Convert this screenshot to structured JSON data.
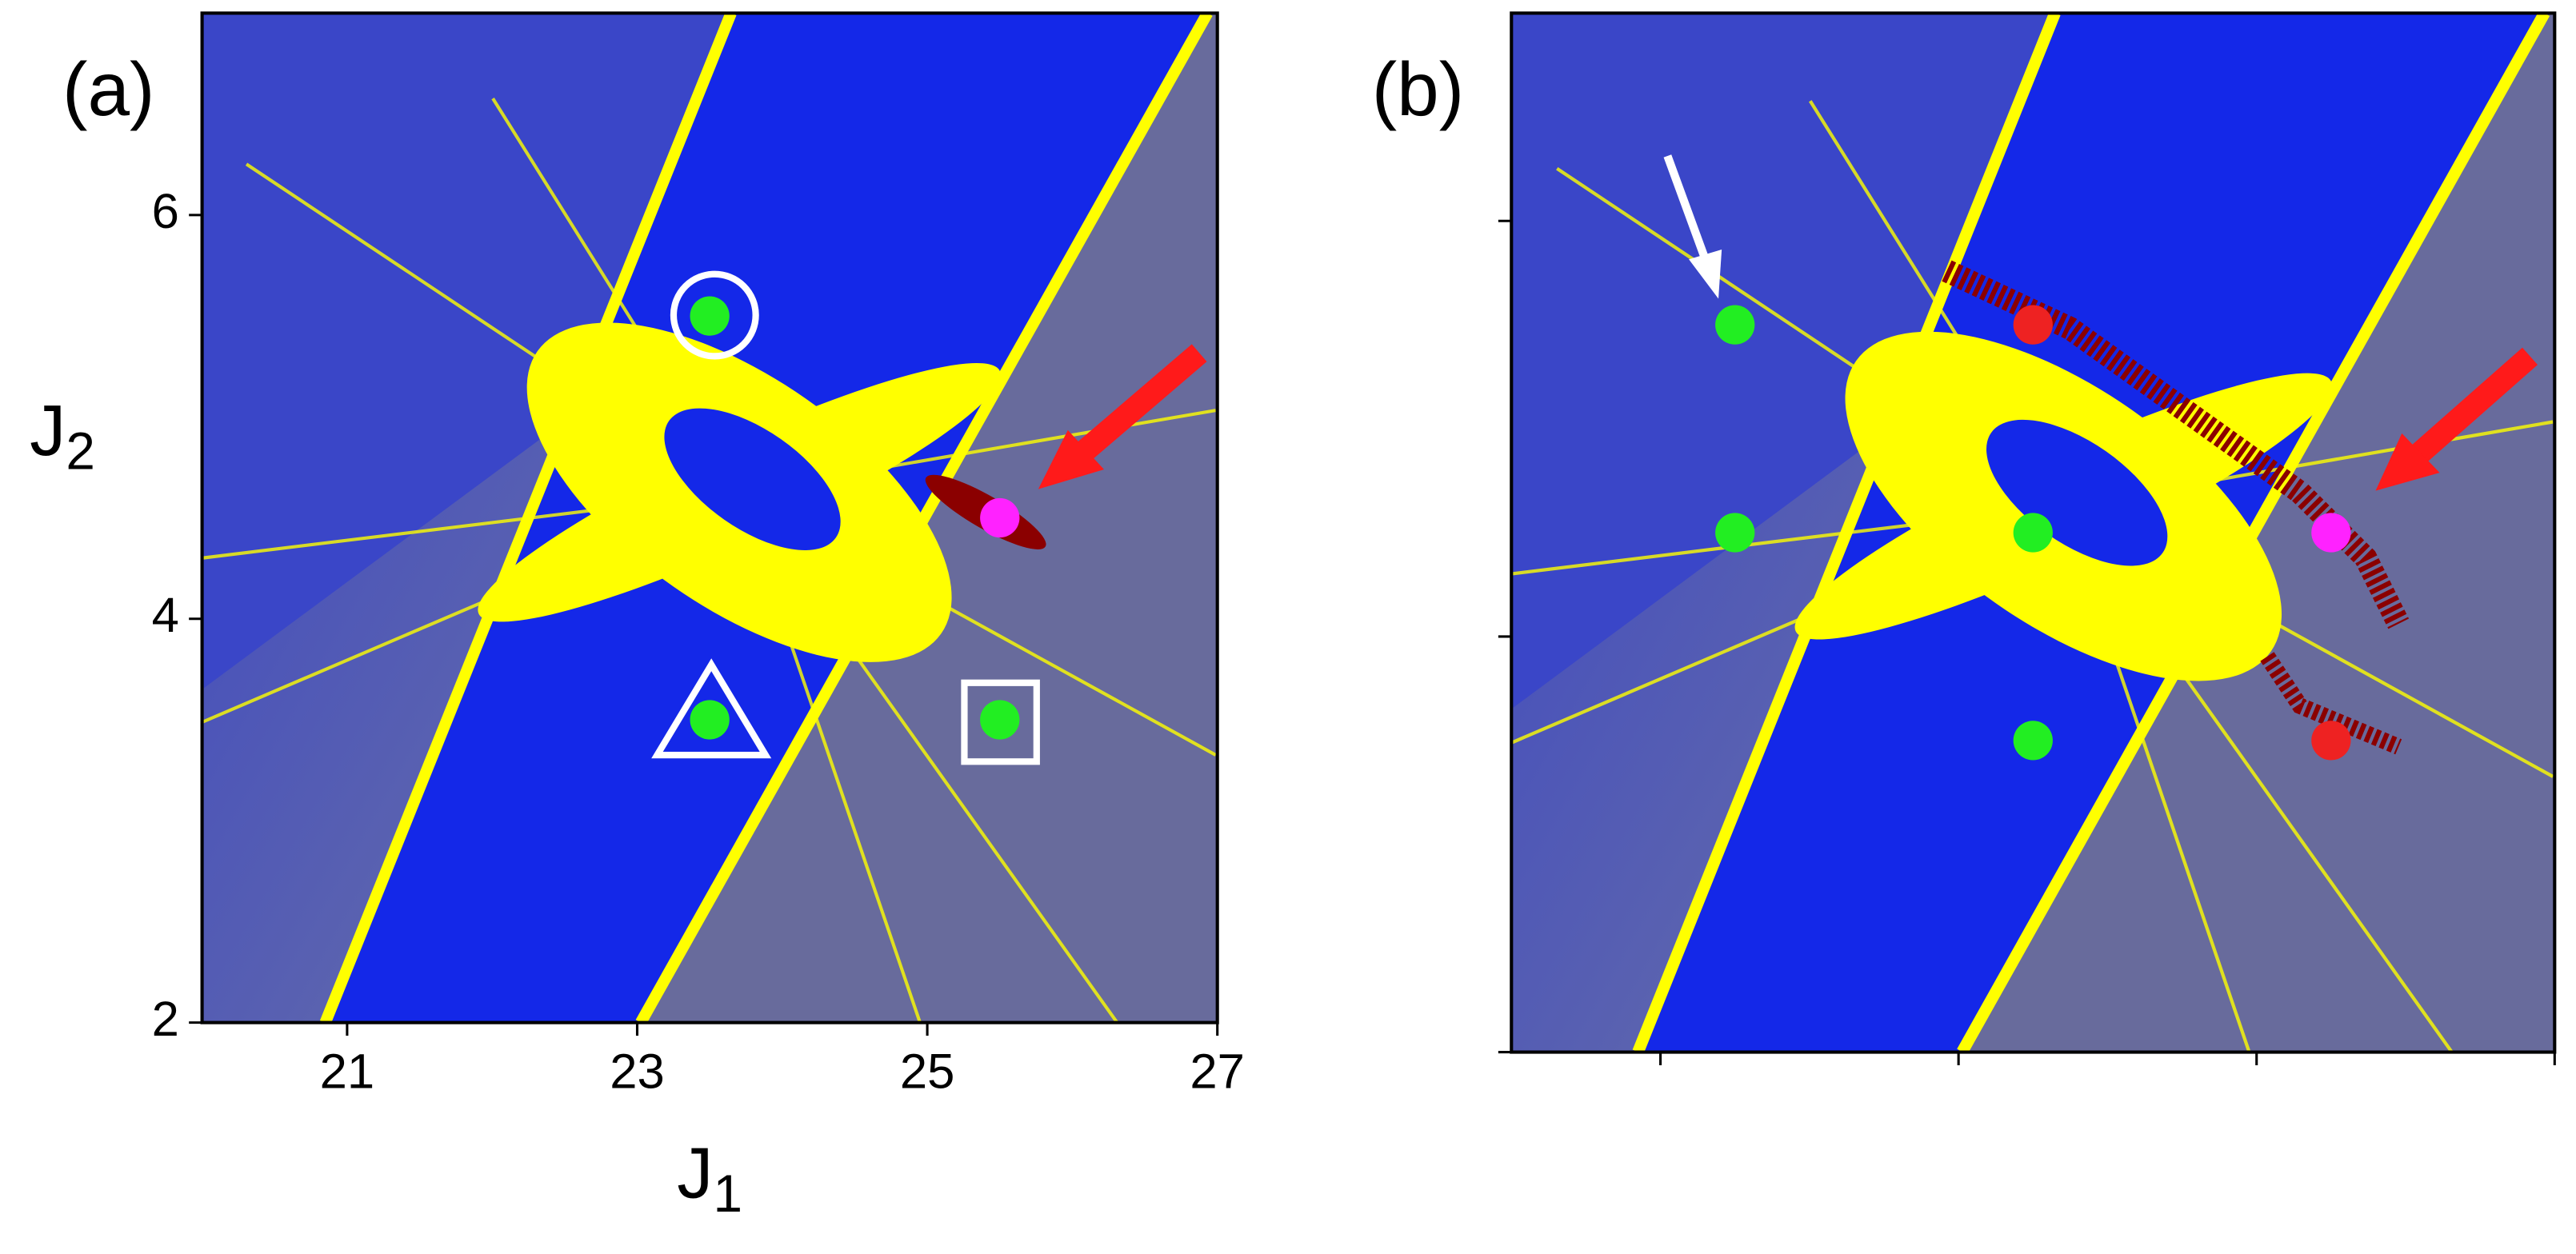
{
  "chart_data": [
    {
      "type": "scatter",
      "label": "(a)",
      "x_label": {
        "base": "J",
        "sub": "1"
      },
      "y_label": {
        "base": "J",
        "sub": "2"
      },
      "xlim": [
        20,
        27
      ],
      "ylim": [
        2,
        7
      ],
      "xticks": [
        21,
        23,
        25,
        27
      ],
      "yticks": [
        2,
        4,
        6
      ],
      "points": [
        {
          "color": "#22ee22",
          "x": [
            23.5,
            23.5,
            25.5
          ],
          "y": [
            5.5,
            3.5,
            3.5
          ]
        },
        {
          "color": "#ff22ff",
          "x": [
            25.5
          ],
          "y": [
            4.5
          ]
        }
      ]
    },
    {
      "type": "scatter",
      "label": "(b)",
      "xlim": [
        20,
        27
      ],
      "ylim": [
        2,
        7
      ],
      "xticks": [
        21,
        23,
        25,
        27
      ],
      "yticks": [
        2,
        4,
        6
      ],
      "tick_labels": false,
      "points": [
        {
          "color": "#22ee22",
          "x": [
            21.5,
            21.5,
            23.5,
            23.5
          ],
          "y": [
            5.5,
            4.5,
            4.5,
            3.5
          ]
        },
        {
          "color": "#ee2222",
          "x": [
            23.5,
            25.5
          ],
          "y": [
            5.5,
            3.5
          ]
        },
        {
          "color": "#ff22ff",
          "x": [
            25.5
          ],
          "y": [
            4.5
          ]
        }
      ]
    }
  ]
}
